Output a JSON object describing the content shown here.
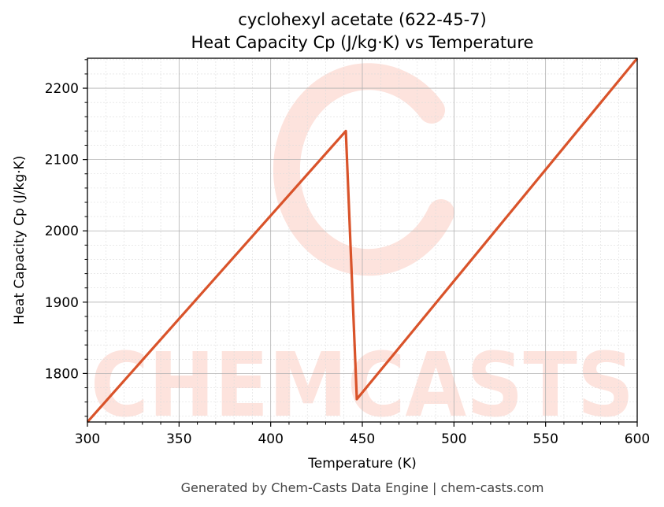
{
  "title_line1": "cyclohexyl acetate (622-45-7)",
  "title_line2": "Heat Capacity Cp (J/kg·K) vs Temperature",
  "footer": "Generated by Chem-Casts Data Engine | chem-casts.com",
  "watermark": "CHEMCASTS",
  "colors": {
    "line": "#d9532a",
    "watermark": "#fde3dd"
  },
  "chart_data": {
    "type": "line",
    "xlabel": "Temperature (K)",
    "ylabel": "Heat Capacity Cp (J/kg·K)",
    "xlim": [
      300,
      600
    ],
    "ylim": [
      1732,
      2242
    ],
    "xticks": [
      300,
      350,
      400,
      450,
      500,
      550,
      600
    ],
    "yticks": [
      1800,
      1900,
      2000,
      2100,
      2200
    ],
    "grid": true,
    "series": [
      {
        "x": [
          300,
          441,
          447,
          600
        ],
        "y": [
          1732,
          2140,
          1764,
          2242
        ]
      }
    ]
  }
}
